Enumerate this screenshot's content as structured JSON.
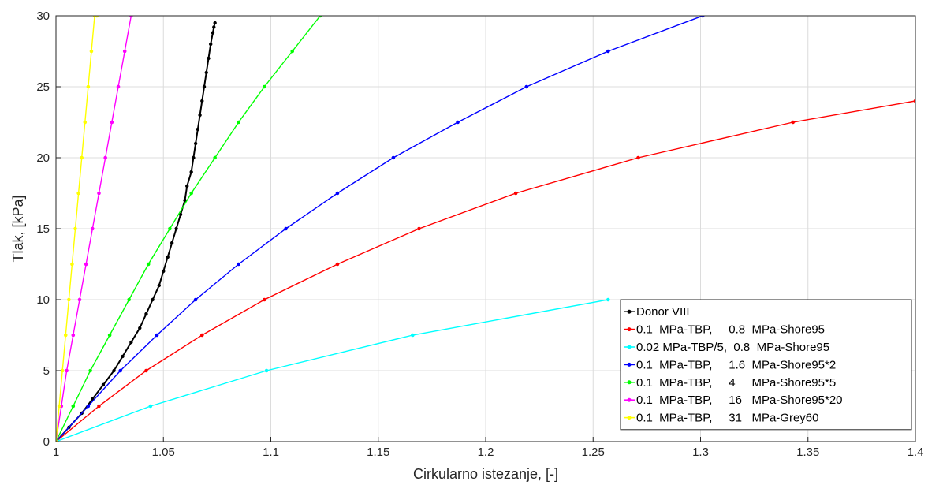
{
  "chart_data": {
    "type": "line",
    "title": "",
    "xlabel": "Cirkularno istezanje, [-]",
    "ylabel": "Tlak, [kPa]",
    "xlim": [
      1,
      1.4
    ],
    "ylim": [
      0,
      30
    ],
    "xticks": [
      "1",
      "1.05",
      "1.1",
      "1.15",
      "1.2",
      "1.25",
      "1.3",
      "1.35",
      "1.4"
    ],
    "yticks": [
      "0",
      "5",
      "10",
      "15",
      "20",
      "25",
      "30"
    ],
    "grid": true,
    "legend_position": "bottom-right",
    "series": [
      {
        "name": "Donor VIII",
        "color": "#000000",
        "x": [
          1.0,
          1.006,
          1.012,
          1.017,
          1.022,
          1.027,
          1.031,
          1.035,
          1.039,
          1.042,
          1.045,
          1.048,
          1.05,
          1.052,
          1.054,
          1.056,
          1.058,
          1.06,
          1.061,
          1.063,
          1.064,
          1.065,
          1.066,
          1.067,
          1.068,
          1.069,
          1.07,
          1.071,
          1.072,
          1.073,
          1.0735,
          1.074
        ],
        "y": [
          0,
          1,
          2,
          3,
          4,
          5,
          6,
          7,
          8,
          9,
          10,
          11,
          12,
          13,
          14,
          15,
          16,
          17,
          18,
          19,
          20,
          21,
          22,
          23,
          24,
          25,
          26,
          27,
          28,
          28.8,
          29.2,
          29.5
        ]
      },
      {
        "name": "0.1  MPa-TBP,     0.8  MPa-Shore95",
        "color": "#ff0000",
        "x": [
          1.0,
          1.02,
          1.042,
          1.068,
          1.097,
          1.131,
          1.169,
          1.214,
          1.271,
          1.343,
          1.4
        ],
        "y": [
          0,
          2.5,
          5,
          7.5,
          10,
          12.5,
          15,
          17.5,
          20,
          22.5,
          24
        ]
      },
      {
        "name": "0.02 MPa-TBP/5,  0.8  MPa-Shore95",
        "color": "#00ffff",
        "x": [
          1.0,
          1.044,
          1.098,
          1.166,
          1.257
        ],
        "y": [
          0,
          2.5,
          5,
          7.5,
          10
        ]
      },
      {
        "name": "0.1  MPa-TBP,     1.6  MPa-Shore95*2",
        "color": "#0000ff",
        "x": [
          1.0,
          1.015,
          1.03,
          1.047,
          1.065,
          1.085,
          1.107,
          1.131,
          1.157,
          1.187,
          1.219,
          1.257,
          1.301
        ],
        "y": [
          0,
          2.5,
          5,
          7.5,
          10,
          12.5,
          15,
          17.5,
          20,
          22.5,
          25,
          27.5,
          30
        ]
      },
      {
        "name": "0.1  MPa-TBP,     4     MPa-Shore95*5",
        "color": "#00ff00",
        "x": [
          1.0,
          1.008,
          1.016,
          1.025,
          1.034,
          1.043,
          1.053,
          1.063,
          1.074,
          1.085,
          1.097,
          1.11,
          1.123
        ],
        "y": [
          0,
          2.5,
          5,
          7.5,
          10,
          12.5,
          15,
          17.5,
          20,
          22.5,
          25,
          27.5,
          30
        ]
      },
      {
        "name": "0.1  MPa-TBP,     16   MPa-Shore95*20",
        "color": "#ff00ff",
        "x": [
          1.0,
          1.0025,
          1.005,
          1.008,
          1.011,
          1.014,
          1.017,
          1.02,
          1.023,
          1.026,
          1.029,
          1.032,
          1.035
        ],
        "y": [
          0,
          2.5,
          5,
          7.5,
          10,
          12.5,
          15,
          17.5,
          20,
          22.5,
          25,
          27.5,
          30
        ]
      },
      {
        "name": "0.1  MPa-TBP,     31   MPa-Grey60",
        "color": "#ffff00",
        "x": [
          1.0,
          1.0015,
          1.003,
          1.0045,
          1.006,
          1.0075,
          1.009,
          1.0105,
          1.012,
          1.0135,
          1.015,
          1.0165,
          1.018,
          1.019
        ],
        "y": [
          0,
          2.5,
          5,
          7.5,
          10,
          12.5,
          15,
          17.5,
          20,
          22.5,
          25,
          27.5,
          30,
          30
        ]
      }
    ]
  }
}
